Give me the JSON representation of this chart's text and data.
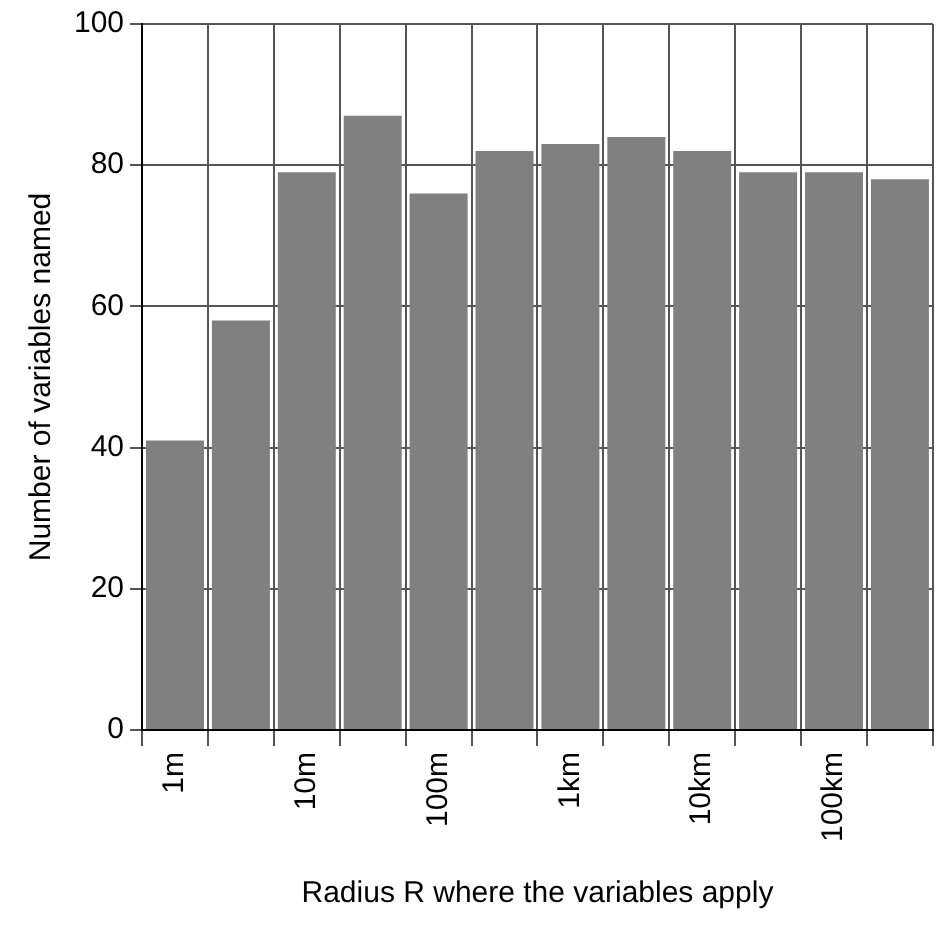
{
  "chart_data": {
    "type": "bar",
    "xlabel": "Radius R where the variables apply",
    "ylabel": "Number of variables named",
    "categories": [
      "1m",
      null,
      "10m",
      null,
      "100m",
      null,
      "1km",
      null,
      "10km",
      null,
      "100km",
      null
    ],
    "values": [
      41,
      58,
      79,
      87,
      76,
      82,
      83,
      84,
      82,
      79,
      79,
      78
    ],
    "color": "#808080",
    "ylim": [
      0,
      100
    ],
    "yticks": [
      0,
      20,
      40,
      60,
      80,
      100
    ],
    "grid": true,
    "legend": false
  }
}
